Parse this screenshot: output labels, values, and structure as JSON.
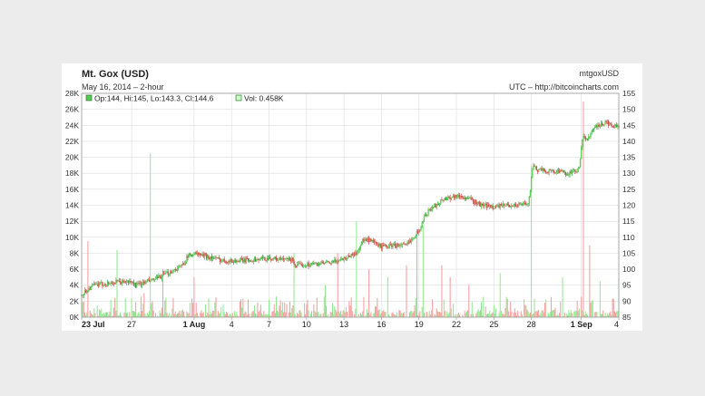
{
  "chart_data": {
    "type": "candlestick",
    "title": "Mt. Gox (USD)",
    "subtitle": "May 16, 2014 – 2-hour",
    "symbol": "mtgoxUSD",
    "source": "UTC – http://bitcoincharts.com",
    "legend": {
      "ohlc": "Op:144, Hi:145, Lo:143.3, Cl:144.6",
      "volume": "Vol: 0.458K"
    },
    "price_axis": {
      "side": "right",
      "ticks": [
        85,
        90,
        95,
        100,
        105,
        110,
        115,
        120,
        125,
        130,
        135,
        140,
        145,
        150,
        155
      ],
      "range": [
        85,
        155
      ]
    },
    "volume_axis": {
      "side": "left",
      "ticks": [
        "0K",
        "2K",
        "4K",
        "6K",
        "8K",
        "10K",
        "12K",
        "14K",
        "16K",
        "18K",
        "20K",
        "22K",
        "24K",
        "26K",
        "28K"
      ],
      "range": [
        0,
        28000
      ]
    },
    "x_axis": {
      "ticks": [
        {
          "day": 0,
          "label": "23 Jul",
          "bold": true
        },
        {
          "day": 4,
          "label": "27",
          "bold": false
        },
        {
          "day": 9,
          "label": "1 Aug",
          "bold": true
        },
        {
          "day": 12,
          "label": "4",
          "bold": false
        },
        {
          "day": 15,
          "label": "7",
          "bold": false
        },
        {
          "day": 18,
          "label": "10",
          "bold": false
        },
        {
          "day": 21,
          "label": "13",
          "bold": false
        },
        {
          "day": 24,
          "label": "16",
          "bold": false
        },
        {
          "day": 27,
          "label": "19",
          "bold": false
        },
        {
          "day": 30,
          "label": "22",
          "bold": false
        },
        {
          "day": 33,
          "label": "25",
          "bold": false
        },
        {
          "day": 36,
          "label": "28",
          "bold": false
        },
        {
          "day": 40,
          "label": "1 Sep",
          "bold": true
        },
        {
          "day": 43,
          "label": "4",
          "bold": false
        }
      ],
      "range": [
        0,
        43
      ]
    },
    "price_path": [
      [
        0,
        92
      ],
      [
        0.6,
        94
      ],
      [
        1,
        95
      ],
      [
        2,
        95.5
      ],
      [
        3,
        96
      ],
      [
        4,
        96
      ],
      [
        4.3,
        95
      ],
      [
        4.8,
        95.5
      ],
      [
        6,
        97
      ],
      [
        7,
        99
      ],
      [
        8,
        101
      ],
      [
        8.5,
        104
      ],
      [
        9,
        105
      ],
      [
        10,
        104
      ],
      [
        11,
        103
      ],
      [
        12,
        102.5
      ],
      [
        14,
        103
      ],
      [
        15,
        103.5
      ],
      [
        16,
        103
      ],
      [
        16.9,
        103
      ],
      [
        17.1,
        101
      ],
      [
        18,
        101.5
      ],
      [
        20,
        102
      ],
      [
        21,
        103.5
      ],
      [
        22,
        105
      ],
      [
        22.5,
        109
      ],
      [
        23,
        109
      ],
      [
        24,
        107
      ],
      [
        25,
        107.5
      ],
      [
        26,
        107.5
      ],
      [
        26.5,
        110
      ],
      [
        27,
        112
      ],
      [
        27.5,
        117
      ],
      [
        28,
        119
      ],
      [
        29,
        122
      ],
      [
        30,
        123
      ],
      [
        31,
        122
      ],
      [
        32,
        120
      ],
      [
        33,
        119.5
      ],
      [
        34,
        120
      ],
      [
        35,
        120
      ],
      [
        35.8,
        121
      ],
      [
        36.1,
        132
      ],
      [
        36.5,
        131
      ],
      [
        38,
        130.5
      ],
      [
        39,
        130
      ],
      [
        39.8,
        131
      ],
      [
        40.1,
        141
      ],
      [
        40.5,
        141
      ],
      [
        41,
        144
      ],
      [
        42,
        146
      ],
      [
        42.5,
        144.5
      ],
      [
        43,
        144.6
      ]
    ],
    "volume_spikes": [
      [
        0.5,
        9500
      ],
      [
        2.8,
        8400
      ],
      [
        5,
        3000
      ],
      [
        5.5,
        20500
      ],
      [
        6.5,
        6000
      ],
      [
        9,
        5000
      ],
      [
        17,
        8000
      ],
      [
        19.5,
        4000
      ],
      [
        20.5,
        8000
      ],
      [
        22,
        12000
      ],
      [
        23,
        6000
      ],
      [
        24.5,
        5000
      ],
      [
        26,
        6500
      ],
      [
        26.8,
        10000
      ],
      [
        27.3,
        11500
      ],
      [
        28.8,
        6500
      ],
      [
        29.5,
        5000
      ],
      [
        31,
        4000
      ],
      [
        33.5,
        5500
      ],
      [
        36,
        19000
      ],
      [
        38.5,
        5000
      ],
      [
        40.2,
        27000
      ],
      [
        40.7,
        9000
      ],
      [
        41.5,
        4500
      ],
      [
        43,
        5000
      ]
    ]
  }
}
